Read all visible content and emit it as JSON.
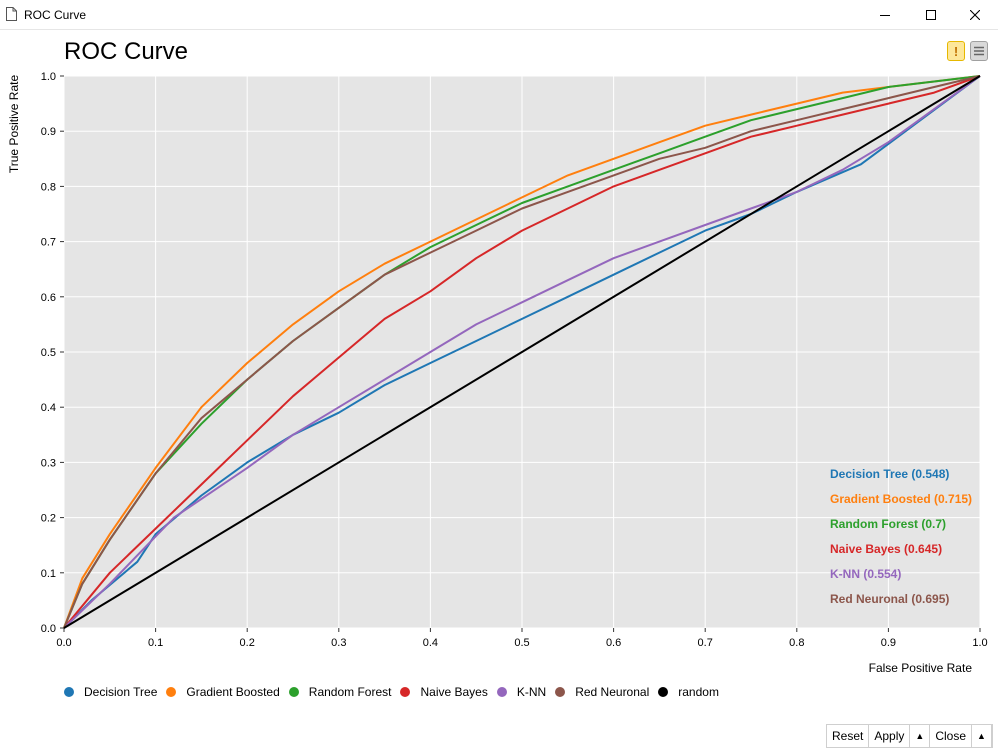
{
  "window": {
    "title": "ROC Curve"
  },
  "chart_data": {
    "type": "line",
    "title": "ROC Curve",
    "xlabel": "False Positive Rate",
    "ylabel": "True Positive Rate",
    "xlim": [
      0,
      1
    ],
    "ylim": [
      0,
      1
    ],
    "xticks": [
      "0.0",
      "0.1",
      "0.2",
      "0.3",
      "0.4",
      "0.5",
      "0.6",
      "0.7",
      "0.8",
      "0.9",
      "1.0"
    ],
    "yticks": [
      "0.0",
      "0.1",
      "0.2",
      "0.3",
      "0.4",
      "0.5",
      "0.6",
      "0.7",
      "0.8",
      "0.9",
      "1.0"
    ],
    "grid": true,
    "legend_position": "bottom",
    "annotations_position": "bottom-right",
    "series": [
      {
        "name": "Decision Tree",
        "auc_label": "Decision Tree (0.548)",
        "color": "#1f77b4",
        "x": [
          0,
          0.03,
          0.08,
          0.1,
          0.15,
          0.2,
          0.25,
          0.3,
          0.35,
          0.4,
          0.45,
          0.5,
          0.55,
          0.6,
          0.65,
          0.7,
          0.75,
          0.8,
          0.87,
          1.0
        ],
        "y": [
          0,
          0.05,
          0.12,
          0.17,
          0.24,
          0.3,
          0.35,
          0.39,
          0.44,
          0.48,
          0.52,
          0.56,
          0.6,
          0.64,
          0.68,
          0.72,
          0.75,
          0.79,
          0.84,
          1.0
        ]
      },
      {
        "name": "Gradient Boosted",
        "auc_label": "Gradient Boosted (0.715)",
        "color": "#ff7f0e",
        "x": [
          0,
          0.02,
          0.05,
          0.1,
          0.15,
          0.2,
          0.25,
          0.3,
          0.35,
          0.4,
          0.45,
          0.5,
          0.55,
          0.6,
          0.65,
          0.7,
          0.75,
          0.8,
          0.85,
          0.9,
          0.95,
          1.0
        ],
        "y": [
          0,
          0.09,
          0.17,
          0.29,
          0.4,
          0.48,
          0.55,
          0.61,
          0.66,
          0.7,
          0.74,
          0.78,
          0.82,
          0.85,
          0.88,
          0.91,
          0.93,
          0.95,
          0.97,
          0.98,
          0.99,
          1.0
        ]
      },
      {
        "name": "Random Forest",
        "auc_label": "Random Forest (0.7)",
        "color": "#2ca02c",
        "x": [
          0,
          0.02,
          0.05,
          0.1,
          0.15,
          0.2,
          0.25,
          0.3,
          0.35,
          0.4,
          0.45,
          0.5,
          0.55,
          0.6,
          0.65,
          0.7,
          0.75,
          0.8,
          0.85,
          0.9,
          0.95,
          1.0
        ],
        "y": [
          0,
          0.08,
          0.16,
          0.28,
          0.37,
          0.45,
          0.52,
          0.58,
          0.64,
          0.69,
          0.73,
          0.77,
          0.8,
          0.83,
          0.86,
          0.89,
          0.92,
          0.94,
          0.96,
          0.98,
          0.99,
          1.0
        ]
      },
      {
        "name": "Naive Bayes",
        "auc_label": "Naive Bayes (0.645)",
        "color": "#d62728",
        "x": [
          0,
          0.05,
          0.1,
          0.15,
          0.2,
          0.25,
          0.3,
          0.35,
          0.4,
          0.45,
          0.5,
          0.55,
          0.6,
          0.65,
          0.7,
          0.75,
          0.8,
          0.85,
          0.9,
          0.95,
          1.0
        ],
        "y": [
          0,
          0.1,
          0.18,
          0.26,
          0.34,
          0.42,
          0.49,
          0.56,
          0.61,
          0.67,
          0.72,
          0.76,
          0.8,
          0.83,
          0.86,
          0.89,
          0.91,
          0.93,
          0.95,
          0.97,
          1.0
        ]
      },
      {
        "name": "K-NN",
        "auc_label": "K-NN (0.554)",
        "color": "#9467bd",
        "x": [
          0,
          0.05,
          0.12,
          0.2,
          0.25,
          0.3,
          0.35,
          0.4,
          0.45,
          0.5,
          0.55,
          0.6,
          0.65,
          0.7,
          0.75,
          0.8,
          0.85,
          0.9,
          0.95,
          1.0
        ],
        "y": [
          0,
          0.08,
          0.2,
          0.29,
          0.35,
          0.4,
          0.45,
          0.5,
          0.55,
          0.59,
          0.63,
          0.67,
          0.7,
          0.73,
          0.76,
          0.79,
          0.83,
          0.88,
          0.94,
          1.0
        ]
      },
      {
        "name": "Red Neuronal",
        "auc_label": "Red Neuronal (0.695)",
        "color": "#8c564b",
        "x": [
          0,
          0.02,
          0.05,
          0.1,
          0.15,
          0.2,
          0.25,
          0.3,
          0.35,
          0.4,
          0.45,
          0.5,
          0.55,
          0.6,
          0.65,
          0.7,
          0.75,
          0.8,
          0.85,
          0.9,
          0.95,
          1.0
        ],
        "y": [
          0,
          0.08,
          0.16,
          0.28,
          0.38,
          0.45,
          0.52,
          0.58,
          0.64,
          0.68,
          0.72,
          0.76,
          0.79,
          0.82,
          0.85,
          0.87,
          0.9,
          0.92,
          0.94,
          0.96,
          0.98,
          1.0
        ]
      },
      {
        "name": "random",
        "color": "#000000",
        "x": [
          0,
          1
        ],
        "y": [
          0,
          1
        ]
      }
    ]
  },
  "footer": {
    "reset": "Reset",
    "apply": "Apply",
    "close": "Close"
  },
  "colors": {
    "plot_background": "#e5e5e5",
    "grid": "#ffffff"
  }
}
